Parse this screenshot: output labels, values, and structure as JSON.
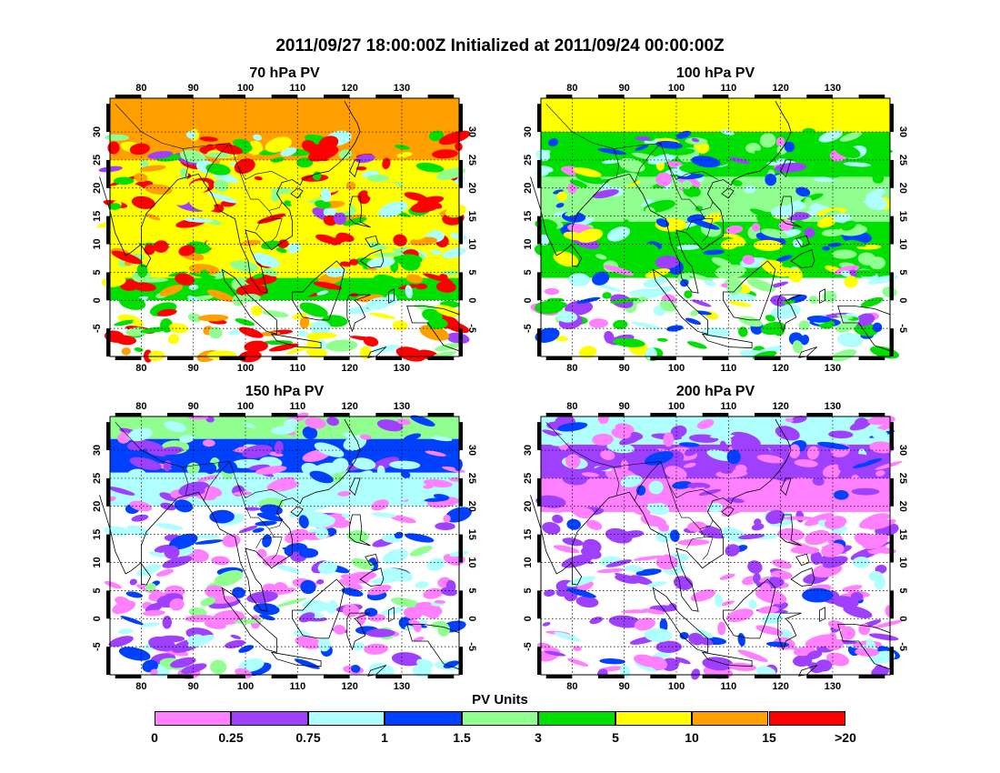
{
  "title": "2011/09/27 18:00:00Z Initialized at 2011/09/24 00:00:00Z",
  "panels": [
    {
      "title": "70 hPa PV"
    },
    {
      "title": "100 hPa PV"
    },
    {
      "title": "150 hPa PV"
    },
    {
      "title": "200 hPa PV"
    }
  ],
  "axes": {
    "lon_ticks": [
      "80",
      "90",
      "100",
      "110",
      "120",
      "130"
    ],
    "lat_ticks": [
      "30",
      "25",
      "20",
      "15",
      "10",
      "5",
      "0",
      "-5"
    ],
    "lon_range": [
      74,
      141
    ],
    "lat_range": [
      -10,
      36
    ]
  },
  "colorbar": {
    "title": "PV Units",
    "labels": [
      "0",
      "0.25",
      "0.75",
      "1",
      "1.5",
      "3",
      "5",
      "10",
      "15",
      ">20"
    ],
    "colors": [
      "#ff80ff",
      "#a040ff",
      "#b0ffff",
      "#0040ff",
      "#90ff90",
      "#00e000",
      "#ffff00",
      "#ffa000",
      "#ff0000"
    ]
  }
}
